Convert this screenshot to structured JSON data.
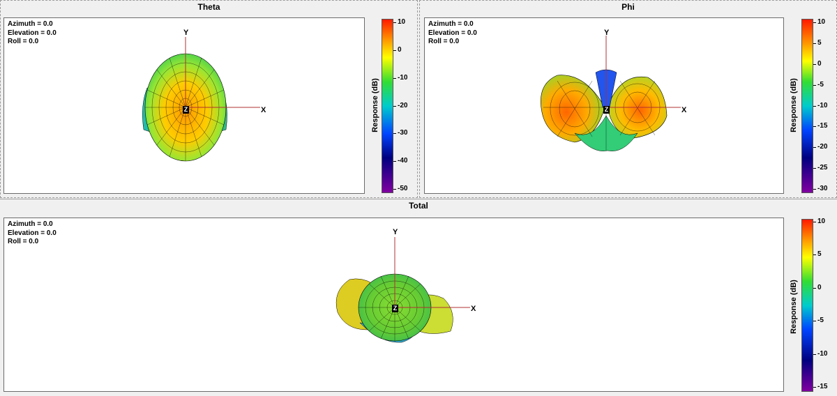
{
  "panels": {
    "theta": {
      "title": "Theta",
      "azimuth": "Azimuth = 0.0",
      "elevation": "Elevation = 0.0",
      "roll": "Roll = 0.0",
      "axis_y": "Y",
      "axis_x": "X",
      "axis_z": "Z",
      "colorbar_label": "Response  (dB)",
      "ticks": [
        "10",
        "0",
        "-10",
        "-20",
        "-30",
        "-40",
        "-50"
      ]
    },
    "phi": {
      "title": "Phi",
      "azimuth": "Azimuth = 0.0",
      "elevation": "Elevation = 0.0",
      "roll": "Roll = 0.0",
      "axis_y": "Y",
      "axis_x": "X",
      "axis_z": "Z",
      "colorbar_label": "Response  (dB)",
      "ticks": [
        "10",
        "5",
        "0",
        "-5",
        "-10",
        "-15",
        "-20",
        "-25",
        "-30"
      ]
    },
    "total": {
      "title": "Total",
      "azimuth": "Azimuth = 0.0",
      "elevation": "Elevation = 0.0",
      "roll": "Roll = 0.0",
      "axis_y": "Y",
      "axis_x": "X",
      "axis_z": "Z",
      "colorbar_label": "Response  (dB)",
      "ticks": [
        "10",
        "5",
        "0",
        "-5",
        "-10",
        "-15"
      ]
    }
  },
  "colormap": [
    "#ff1a00",
    "#ff9900",
    "#ffff00",
    "#33dd33",
    "#00cccc",
    "#0044ff",
    "#000080",
    "#8000a0"
  ],
  "colors": {
    "axis_line": "#b03030",
    "mesh_line": "#000000"
  }
}
